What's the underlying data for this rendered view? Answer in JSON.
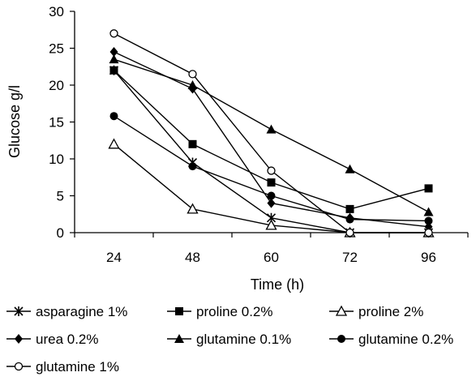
{
  "chart_data": {
    "type": "line",
    "title": "",
    "xlabel": "Time (h)",
    "ylabel": "Glucose g/l",
    "categories": [
      "24",
      "48",
      "60",
      "72",
      "96"
    ],
    "ylim": [
      0,
      30
    ],
    "yticks": [
      "0",
      "5",
      "10",
      "15",
      "20",
      "25",
      "30"
    ],
    "grid": false,
    "legend_position": "bottom",
    "series": [
      {
        "name": "asparagine 1%",
        "marker": "asterisk",
        "values": [
          22,
          9.5,
          2,
          0,
          0
        ]
      },
      {
        "name": "proline 0.2%",
        "marker": "filled-square",
        "values": [
          22,
          12,
          6.8,
          3.2,
          6
        ]
      },
      {
        "name": "proline 2%",
        "marker": "open-triangle",
        "values": [
          12,
          3.2,
          1,
          0,
          0
        ]
      },
      {
        "name": "urea 0.2%",
        "marker": "filled-diamond",
        "values": [
          24.5,
          19.5,
          4,
          2,
          0.8
        ]
      },
      {
        "name": "glutamine 0.1%",
        "marker": "filled-triangle",
        "values": [
          23.5,
          20,
          14,
          8.6,
          2.8
        ]
      },
      {
        "name": "glutamine 0.2%",
        "marker": "filled-circle",
        "values": [
          15.8,
          9,
          5,
          1.8,
          1.6
        ]
      },
      {
        "name": "glutamine 1%",
        "marker": "open-circle",
        "values": [
          27,
          21.5,
          8.4,
          0,
          0
        ]
      }
    ]
  }
}
